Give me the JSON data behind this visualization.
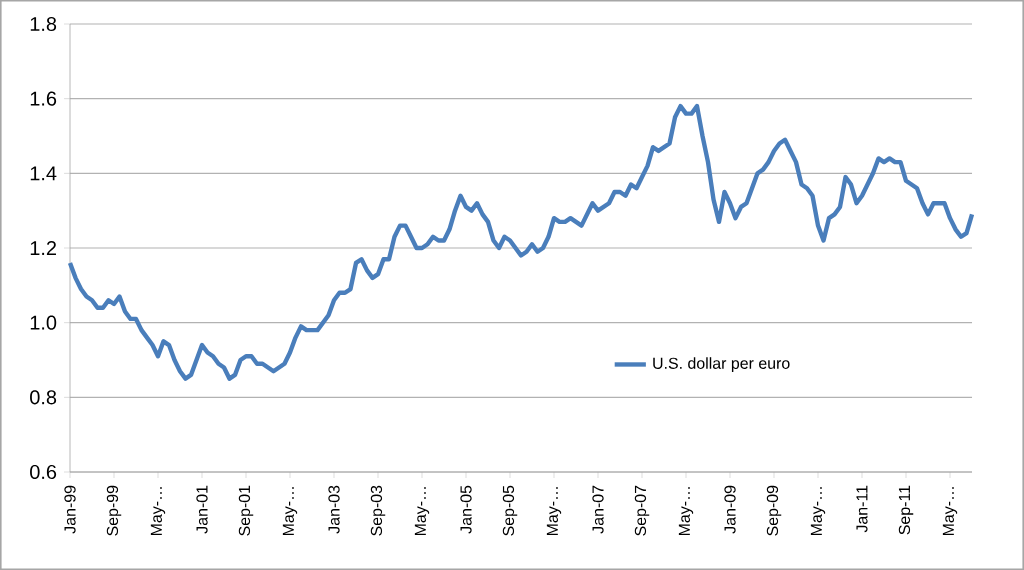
{
  "chart_data": {
    "type": "line",
    "x": [
      "1999-01",
      "1999-02",
      "1999-03",
      "1999-04",
      "1999-05",
      "1999-06",
      "1999-07",
      "1999-08",
      "1999-09",
      "1999-10",
      "1999-11",
      "1999-12",
      "2000-01",
      "2000-02",
      "2000-03",
      "2000-04",
      "2000-05",
      "2000-06",
      "2000-07",
      "2000-08",
      "2000-09",
      "2000-10",
      "2000-11",
      "2000-12",
      "2001-01",
      "2001-02",
      "2001-03",
      "2001-04",
      "2001-05",
      "2001-06",
      "2001-07",
      "2001-08",
      "2001-09",
      "2001-10",
      "2001-11",
      "2001-12",
      "2002-01",
      "2002-02",
      "2002-03",
      "2002-04",
      "2002-05",
      "2002-06",
      "2002-07",
      "2002-08",
      "2002-09",
      "2002-10",
      "2002-11",
      "2002-12",
      "2003-01",
      "2003-02",
      "2003-03",
      "2003-04",
      "2003-05",
      "2003-06",
      "2003-07",
      "2003-08",
      "2003-09",
      "2003-10",
      "2003-11",
      "2003-12",
      "2004-01",
      "2004-02",
      "2004-03",
      "2004-04",
      "2004-05",
      "2004-06",
      "2004-07",
      "2004-08",
      "2004-09",
      "2004-10",
      "2004-11",
      "2004-12",
      "2005-01",
      "2005-02",
      "2005-03",
      "2005-04",
      "2005-05",
      "2005-06",
      "2005-07",
      "2005-08",
      "2005-09",
      "2005-10",
      "2005-11",
      "2005-12",
      "2006-01",
      "2006-02",
      "2006-03",
      "2006-04",
      "2006-05",
      "2006-06",
      "2006-07",
      "2006-08",
      "2006-09",
      "2006-10",
      "2006-11",
      "2006-12",
      "2007-01",
      "2007-02",
      "2007-03",
      "2007-04",
      "2007-05",
      "2007-06",
      "2007-07",
      "2007-08",
      "2007-09",
      "2007-10",
      "2007-11",
      "2007-12",
      "2008-01",
      "2008-02",
      "2008-03",
      "2008-04",
      "2008-05",
      "2008-06",
      "2008-07",
      "2008-08",
      "2008-09",
      "2008-10",
      "2008-11",
      "2008-12",
      "2009-01",
      "2009-02",
      "2009-03",
      "2009-04",
      "2009-05",
      "2009-06",
      "2009-07",
      "2009-08",
      "2009-09",
      "2009-10",
      "2009-11",
      "2009-12",
      "2010-01",
      "2010-02",
      "2010-03",
      "2010-04",
      "2010-05",
      "2010-06",
      "2010-07",
      "2010-08",
      "2010-09",
      "2010-10",
      "2010-11",
      "2010-12",
      "2011-01",
      "2011-02",
      "2011-03",
      "2011-04",
      "2011-05",
      "2011-06",
      "2011-07",
      "2011-08",
      "2011-09",
      "2011-10",
      "2011-11",
      "2011-12",
      "2012-01",
      "2012-02",
      "2012-03",
      "2012-04",
      "2012-05",
      "2012-06",
      "2012-07",
      "2012-08",
      "2012-09"
    ],
    "series": [
      {
        "name": "U.S. dollar per euro",
        "color": "#4a7ebb",
        "values": [
          1.16,
          1.12,
          1.09,
          1.07,
          1.06,
          1.04,
          1.04,
          1.06,
          1.05,
          1.07,
          1.03,
          1.01,
          1.01,
          0.98,
          0.96,
          0.94,
          0.91,
          0.95,
          0.94,
          0.9,
          0.87,
          0.85,
          0.86,
          0.9,
          0.94,
          0.92,
          0.91,
          0.89,
          0.88,
          0.85,
          0.86,
          0.9,
          0.91,
          0.91,
          0.89,
          0.89,
          0.88,
          0.87,
          0.88,
          0.89,
          0.92,
          0.96,
          0.99,
          0.98,
          0.98,
          0.98,
          1.0,
          1.02,
          1.06,
          1.08,
          1.08,
          1.09,
          1.16,
          1.17,
          1.14,
          1.12,
          1.13,
          1.17,
          1.17,
          1.23,
          1.26,
          1.26,
          1.23,
          1.2,
          1.2,
          1.21,
          1.23,
          1.22,
          1.22,
          1.25,
          1.3,
          1.34,
          1.31,
          1.3,
          1.32,
          1.29,
          1.27,
          1.22,
          1.2,
          1.23,
          1.22,
          1.2,
          1.18,
          1.19,
          1.21,
          1.19,
          1.2,
          1.23,
          1.28,
          1.27,
          1.27,
          1.28,
          1.27,
          1.26,
          1.29,
          1.32,
          1.3,
          1.31,
          1.32,
          1.35,
          1.35,
          1.34,
          1.37,
          1.36,
          1.39,
          1.42,
          1.47,
          1.46,
          1.47,
          1.48,
          1.55,
          1.58,
          1.56,
          1.56,
          1.58,
          1.5,
          1.43,
          1.33,
          1.27,
          1.35,
          1.32,
          1.28,
          1.31,
          1.32,
          1.36,
          1.4,
          1.41,
          1.43,
          1.46,
          1.48,
          1.49,
          1.46,
          1.43,
          1.37,
          1.36,
          1.34,
          1.26,
          1.22,
          1.28,
          1.29,
          1.31,
          1.39,
          1.37,
          1.32,
          1.34,
          1.37,
          1.4,
          1.44,
          1.43,
          1.44,
          1.43,
          1.43,
          1.38,
          1.37,
          1.36,
          1.32,
          1.29,
          1.32,
          1.32,
          1.32,
          1.28,
          1.25,
          1.23,
          1.24,
          1.29
        ]
      }
    ],
    "xlim": [
      "1999-01",
      "2012-09"
    ],
    "xticks": [
      {
        "value": "1999-01",
        "label": "Jan-99"
      },
      {
        "value": "1999-09",
        "label": "Sep-99"
      },
      {
        "value": "2000-05",
        "label": "May-…"
      },
      {
        "value": "2001-01",
        "label": "Jan-01"
      },
      {
        "value": "2001-09",
        "label": "Sep-01"
      },
      {
        "value": "2002-05",
        "label": "May-…"
      },
      {
        "value": "2003-01",
        "label": "Jan-03"
      },
      {
        "value": "2003-09",
        "label": "Sep-03"
      },
      {
        "value": "2004-05",
        "label": "May-…"
      },
      {
        "value": "2005-01",
        "label": "Jan-05"
      },
      {
        "value": "2005-09",
        "label": "Sep-05"
      },
      {
        "value": "2006-05",
        "label": "May-…"
      },
      {
        "value": "2007-01",
        "label": "Jan-07"
      },
      {
        "value": "2007-09",
        "label": "Sep-07"
      },
      {
        "value": "2008-05",
        "label": "May-…"
      },
      {
        "value": "2009-01",
        "label": "Jan-09"
      },
      {
        "value": "2009-09",
        "label": "Sep-09"
      },
      {
        "value": "2010-05",
        "label": "May-…"
      },
      {
        "value": "2011-01",
        "label": "Jan-11"
      },
      {
        "value": "2011-09",
        "label": "Sep-11"
      },
      {
        "value": "2012-05",
        "label": "May-…"
      }
    ],
    "ylim": [
      0.6,
      1.8
    ],
    "yticks": [
      {
        "value": 0.6,
        "label": "0.6"
      },
      {
        "value": 0.8,
        "label": "0.8"
      },
      {
        "value": 1.0,
        "label": "1.0"
      },
      {
        "value": 1.2,
        "label": "1.2"
      },
      {
        "value": 1.4,
        "label": "1.4"
      },
      {
        "value": 1.6,
        "label": "1.6"
      },
      {
        "value": 1.8,
        "label": "1.8"
      }
    ],
    "grid": "y",
    "legend": "bottom right",
    "marker": "none",
    "line_style": "solid"
  }
}
